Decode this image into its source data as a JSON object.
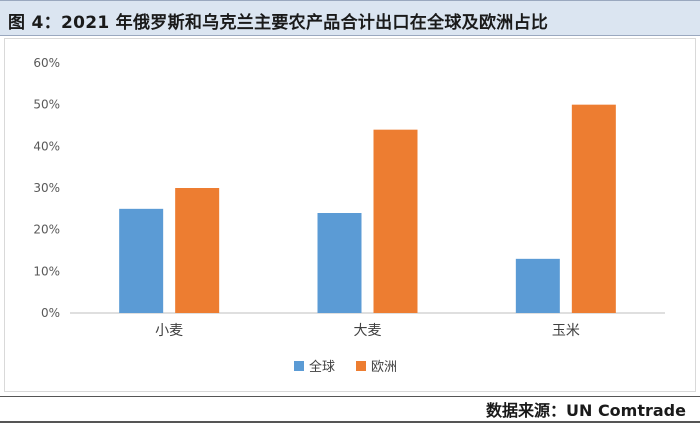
{
  "title": "图 4：2021 年俄罗斯和乌克兰主要农产品合计出口在全球及欧洲占比",
  "source": "数据来源：UN Comtrade",
  "chart_data": {
    "type": "bar",
    "categories": [
      "小麦",
      "大麦",
      "玉米"
    ],
    "series": [
      {
        "name": "全球",
        "values": [
          25,
          24,
          13
        ],
        "color": "#5b9bd5"
      },
      {
        "name": "欧洲",
        "values": [
          30,
          44,
          50
        ],
        "color": "#ed7d31"
      }
    ],
    "ylim": [
      0,
      60
    ],
    "yticks": [
      0,
      10,
      20,
      30,
      40,
      50,
      60
    ],
    "ytick_labels": [
      "0%",
      "10%",
      "20%",
      "30%",
      "40%",
      "50%",
      "60%"
    ],
    "grid": false,
    "legend": "bottom-center",
    "xlabel": "",
    "ylabel": ""
  }
}
